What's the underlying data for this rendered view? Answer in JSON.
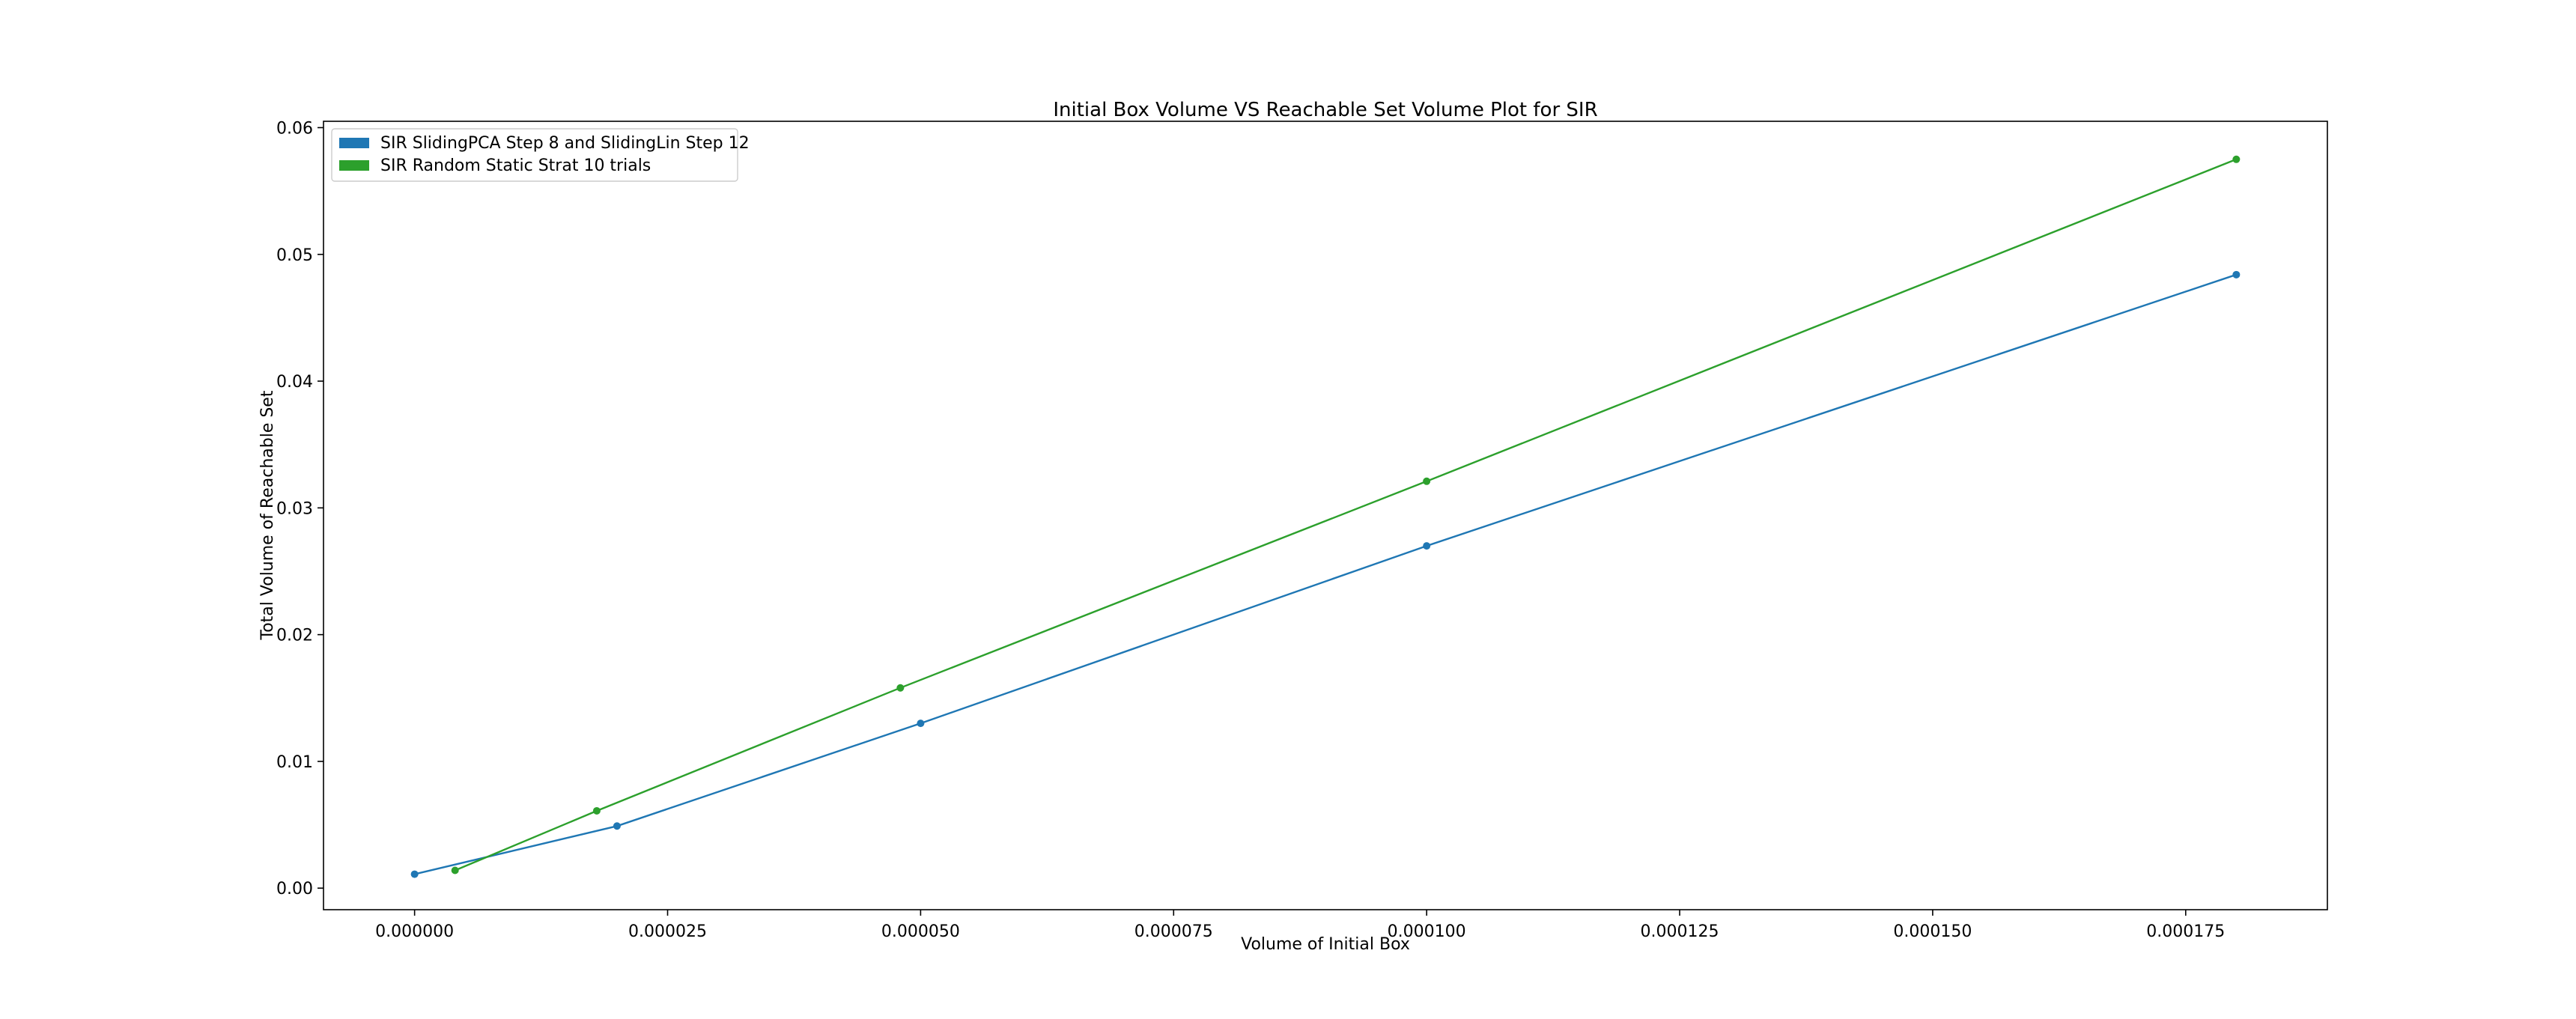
{
  "chart_data": {
    "type": "line",
    "title": "Initial Box Volume VS Reachable Set Volume Plot for SIR",
    "xlabel": "Volume of Initial Box",
    "ylabel": "Total Volume of Reachable Set",
    "xlim": [
      -9e-06,
      0.000189
    ],
    "ylim": [
      -0.0017,
      0.0605
    ],
    "x_ticks": [
      0.0,
      2.5e-05,
      5e-05,
      7.5e-05,
      0.0001,
      0.000125,
      0.00015,
      0.000175
    ],
    "x_tick_labels": [
      "0.000000",
      "0.000025",
      "0.000050",
      "0.000075",
      "0.000100",
      "0.000125",
      "0.000150",
      "0.000175"
    ],
    "y_ticks": [
      0.0,
      0.01,
      0.02,
      0.03,
      0.04,
      0.05,
      0.06
    ],
    "y_tick_labels": [
      "0.00",
      "0.01",
      "0.02",
      "0.03",
      "0.04",
      "0.05",
      "0.06"
    ],
    "grid": false,
    "legend_position": "top-left",
    "series": [
      {
        "name": "SIR SlidingPCA Step 8 and SlidingLin Step 12",
        "color": "#1f77b4",
        "x": [
          0.0,
          2e-05,
          5e-05,
          0.0001,
          0.00018
        ],
        "y": [
          0.0011,
          0.0049,
          0.013,
          0.027,
          0.0484
        ]
      },
      {
        "name": "SIR Random Static  Strat 10 trials",
        "color": "#2ca02c",
        "x": [
          4e-06,
          1.8e-05,
          4.8e-05,
          0.0001,
          0.00018
        ],
        "y": [
          0.0014,
          0.0061,
          0.0158,
          0.0321,
          0.0575
        ]
      }
    ]
  }
}
